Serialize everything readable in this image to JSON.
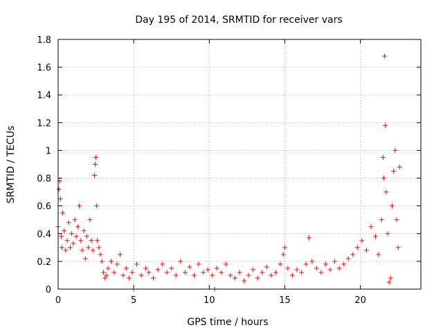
{
  "chart_data": {
    "type": "scatter",
    "title": "Day 195 of 2014, SRMTID for receiver vars",
    "xlabel": "GPS time / hours",
    "ylabel": "SRMTID / TECUs",
    "xlim": [
      0,
      24
    ],
    "ylim": [
      0,
      1.8
    ],
    "xticks": [
      "0",
      "5",
      "10",
      "15",
      "20"
    ],
    "yticks": [
      "0",
      "0.2",
      "0.4",
      "0.6",
      "0.8",
      "1",
      "1.2",
      "1.4",
      "1.6",
      "1.8"
    ],
    "grid": true,
    "marker": "+",
    "series": [
      {
        "name": "SRMTID",
        "color": "#ff0000",
        "x": [
          0.0,
          0.05,
          0.1,
          0.15,
          0.2,
          0.25,
          0.3,
          0.4,
          0.5,
          0.6,
          0.7,
          0.8,
          0.9,
          1.0,
          1.1,
          1.2,
          1.3,
          1.4,
          1.5,
          1.6,
          1.7,
          1.8,
          1.9,
          2.0,
          2.1,
          2.2,
          2.3,
          2.4,
          2.45,
          2.5,
          2.55,
          2.6,
          2.7,
          2.8,
          2.9,
          3.0,
          3.1,
          3.2,
          3.3,
          3.5,
          3.7,
          3.9,
          4.1,
          4.3,
          4.5,
          4.7,
          4.9,
          5.0,
          5.2,
          5.5,
          5.8,
          6.0,
          6.3,
          6.6,
          6.9,
          7.2,
          7.5,
          7.8,
          8.1,
          8.4,
          8.7,
          9.0,
          9.3,
          9.6,
          9.9,
          10.2,
          10.35,
          10.5,
          10.8,
          11.1,
          11.4,
          11.7,
          12.0,
          12.3,
          12.6,
          12.9,
          13.2,
          13.5,
          13.8,
          14.1,
          14.4,
          14.7,
          14.9,
          15.0,
          15.2,
          15.5,
          15.8,
          16.1,
          16.4,
          16.6,
          16.8,
          17.1,
          17.4,
          17.7,
          18.0,
          18.3,
          18.6,
          18.9,
          19.2,
          19.5,
          19.8,
          20.1,
          20.4,
          20.7,
          21.0,
          21.2,
          21.4,
          21.5,
          21.55,
          21.6,
          21.65,
          21.7,
          21.8,
          21.9,
          22.0,
          22.1,
          22.2,
          22.3,
          22.4,
          22.5,
          22.6
        ],
        "y": [
          0.45,
          0.72,
          0.78,
          0.65,
          0.38,
          0.3,
          0.55,
          0.42,
          0.28,
          0.35,
          0.48,
          0.3,
          0.4,
          0.33,
          0.5,
          0.38,
          0.45,
          0.6,
          0.35,
          0.28,
          0.42,
          0.22,
          0.38,
          0.3,
          0.5,
          0.35,
          0.28,
          0.82,
          0.9,
          0.95,
          0.6,
          0.35,
          0.3,
          0.25,
          0.2,
          0.12,
          0.08,
          0.1,
          0.15,
          0.2,
          0.12,
          0.18,
          0.25,
          0.1,
          0.15,
          0.08,
          0.12,
          0.0,
          0.18,
          0.1,
          0.15,
          0.12,
          0.08,
          0.14,
          0.18,
          0.12,
          0.15,
          0.1,
          0.2,
          0.12,
          0.16,
          0.1,
          0.18,
          0.12,
          0.14,
          0.1,
          0.0,
          0.15,
          0.12,
          0.18,
          0.1,
          0.08,
          0.12,
          0.06,
          0.1,
          0.14,
          0.08,
          0.12,
          0.16,
          0.1,
          0.12,
          0.18,
          0.25,
          0.3,
          0.15,
          0.1,
          0.14,
          0.12,
          0.18,
          0.37,
          0.2,
          0.15,
          0.12,
          0.18,
          0.14,
          0.2,
          0.15,
          0.18,
          0.22,
          0.25,
          0.3,
          0.35,
          0.28,
          0.45,
          0.38,
          0.25,
          0.5,
          0.95,
          0.8,
          1.68,
          1.18,
          0.7,
          0.4,
          0.05,
          0.08,
          0.6,
          0.85,
          1.0,
          0.5,
          0.3,
          0.88
        ]
      }
    ]
  }
}
